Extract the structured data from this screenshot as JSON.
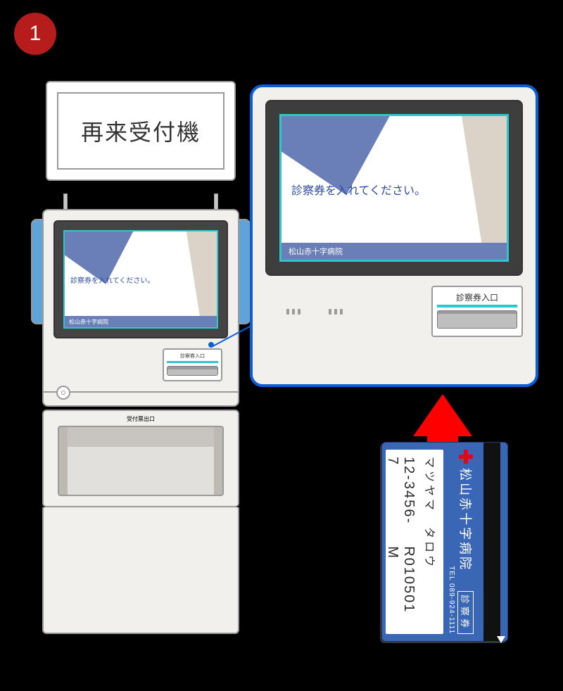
{
  "step_number": "1",
  "colors": {
    "badge": "#b71c1c",
    "callout_border": "#0a5fd6",
    "screen_border": "#2ec7cc",
    "screen_accent": "#6a7fb8",
    "arrow": "#ff0000",
    "card_bg": "#3a67b5",
    "red_cross": "#e30613",
    "kiosk_body": "#f2f0ec",
    "kiosk_outline": "#9a9a9a"
  },
  "kiosk": {
    "sign_title": "再来受付機",
    "screen_prompt": "診察券を入れてください。",
    "screen_footer": "松山赤十字病院",
    "card_slot_label": "診察券入口",
    "receipt_outlet_label": "受付票出口"
  },
  "callout": {
    "screen_prompt": "診察券を入れてください。",
    "screen_footer": "松山赤十字病院",
    "card_slot_label": "診察券入口"
  },
  "patient_card": {
    "hospital_name": "松山赤十字病院",
    "card_type": "診察券",
    "tel_label": "TEL 089-924-1111",
    "patient_name_kana": "マツヤマ　タロウ",
    "patient_id": "12-3456-7",
    "issue_code": "R010501 M"
  }
}
